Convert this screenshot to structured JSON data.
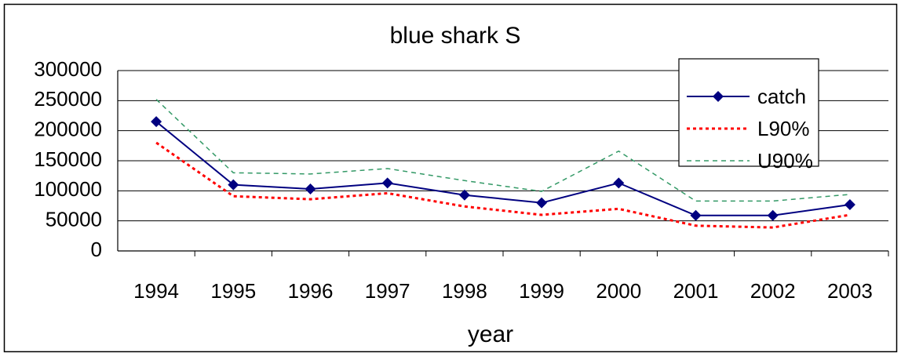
{
  "chart_data": {
    "type": "line",
    "title": "blue shark S",
    "x_label": "year",
    "categories": [
      "1994",
      "1995",
      "1996",
      "1997",
      "1998",
      "1999",
      "2000",
      "2001",
      "2002",
      "2003"
    ],
    "series": [
      {
        "name": "catch",
        "color": "#000080",
        "dash": "solid",
        "marker": "diamond",
        "values": [
          215000,
          110000,
          103000,
          113000,
          93000,
          80000,
          113000,
          59000,
          59000,
          77000
        ]
      },
      {
        "name": "L90%",
        "color": "#ff0000",
        "dash": "dotted",
        "marker": "none",
        "values": [
          180000,
          91000,
          86000,
          96000,
          74000,
          60000,
          70000,
          42000,
          39000,
          60000
        ]
      },
      {
        "name": "U90%",
        "color": "#339966",
        "dash": "dashed",
        "marker": "none",
        "values": [
          252000,
          130000,
          128000,
          137000,
          117000,
          99000,
          166000,
          83000,
          83000,
          94000
        ]
      }
    ],
    "ylim": [
      0,
      300000
    ],
    "yticks": [
      0,
      50000,
      100000,
      150000,
      200000,
      250000,
      300000
    ],
    "grid": true,
    "legend": "upper right"
  }
}
